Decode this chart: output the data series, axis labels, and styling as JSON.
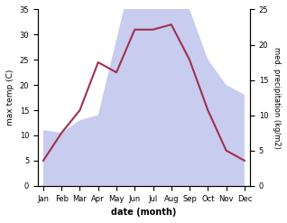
{
  "months": [
    "Jan",
    "Feb",
    "Mar",
    "Apr",
    "May",
    "Jun",
    "Jul",
    "Aug",
    "Sep",
    "Oct",
    "Nov",
    "Dec"
  ],
  "temp": [
    5,
    10.5,
    15,
    24.5,
    22.5,
    31,
    31,
    32,
    25,
    15,
    7,
    5
  ],
  "precip_right_scale": [
    7.9,
    7.5,
    9.3,
    10,
    20.7,
    31.4,
    28.6,
    32.9,
    25,
    17.9,
    14.3,
    12.9
  ],
  "temp_color": "#a03050",
  "precip_fill_color": "#c8ccee",
  "xlabel": "date (month)",
  "ylabel_left": "max temp (C)",
  "ylabel_right": "med. precipitation (kg/m2)",
  "ylim_left": [
    0,
    35
  ],
  "ylim_right": [
    0,
    25
  ],
  "yticks_left": [
    0,
    5,
    10,
    15,
    20,
    25,
    30,
    35
  ],
  "yticks_right": [
    0,
    5,
    10,
    15,
    20,
    25
  ],
  "background_color": "#ffffff",
  "line_width": 1.5
}
